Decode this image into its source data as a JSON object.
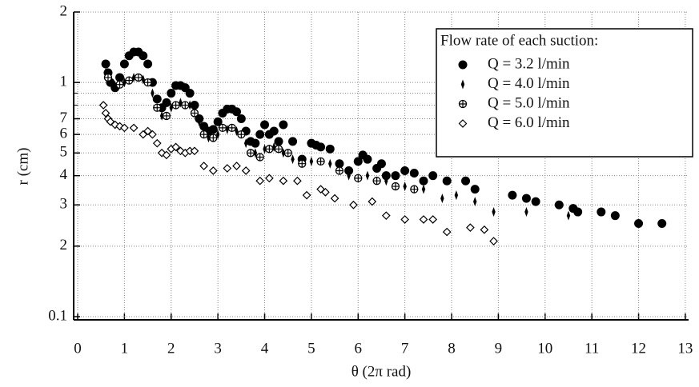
{
  "chart_data": {
    "type": "scatter",
    "xlabel": "θ (2π rad)",
    "ylabel": "r (cm)",
    "log_y": true,
    "grid": true,
    "legend_position": "upper right",
    "legend_title": "Flow rate of each suction:",
    "xlim": [
      -0.086,
      13.07
    ],
    "xticks": [
      0,
      1,
      2,
      3,
      4,
      5,
      6,
      7,
      8,
      9,
      10,
      11,
      12,
      13
    ],
    "ylim": [
      0.0969,
      2
    ],
    "yticks": [
      0.1,
      {
        "value": 0.2,
        "label": "2"
      },
      {
        "value": 0.3,
        "label": "3"
      },
      {
        "value": 0.4,
        "label": "4"
      },
      {
        "value": 0.5,
        "label": "5"
      },
      {
        "value": 0.6,
        "label": "6"
      },
      {
        "value": 0.7,
        "label": "7"
      },
      1,
      2
    ],
    "minor_yticks": [
      0.8,
      0.9
    ],
    "series": [
      {
        "name": "Q = 3.2 l/min",
        "marker": "filled-circle",
        "color": "#000000",
        "x": [
          0.6,
          0.65,
          0.7,
          0.8,
          0.9,
          1.0,
          1.1,
          1.2,
          1.3,
          1.4,
          1.5,
          1.6,
          1.7,
          1.8,
          1.9,
          2.0,
          2.1,
          2.2,
          2.3,
          2.4,
          2.5,
          2.6,
          2.7,
          2.8,
          2.9,
          3.0,
          3.1,
          3.2,
          3.3,
          3.4,
          3.5,
          3.6,
          3.7,
          3.8,
          3.9,
          4.0,
          4.1,
          4.2,
          4.3,
          4.4,
          4.6,
          4.8,
          5.0,
          5.1,
          5.2,
          5.4,
          5.6,
          5.8,
          6.0,
          6.1,
          6.2,
          6.4,
          6.5,
          6.6,
          6.8,
          7.0,
          7.2,
          7.4,
          7.6,
          7.9,
          8.3,
          8.5,
          9.3,
          9.6,
          9.8,
          10.3,
          10.6,
          10.7,
          11.2,
          11.5,
          12.0,
          12.5
        ],
        "y": [
          1.2,
          1.1,
          1.0,
          0.95,
          1.05,
          1.2,
          1.3,
          1.35,
          1.35,
          1.3,
          1.2,
          1.0,
          0.85,
          0.78,
          0.82,
          0.9,
          0.97,
          0.97,
          0.95,
          0.9,
          0.8,
          0.7,
          0.65,
          0.62,
          0.63,
          0.68,
          0.74,
          0.77,
          0.77,
          0.75,
          0.7,
          0.62,
          0.56,
          0.55,
          0.6,
          0.66,
          0.6,
          0.62,
          0.56,
          0.66,
          0.56,
          0.47,
          0.55,
          0.54,
          0.53,
          0.52,
          0.45,
          0.42,
          0.46,
          0.49,
          0.47,
          0.43,
          0.45,
          0.4,
          0.4,
          0.42,
          0.41,
          0.38,
          0.4,
          0.38,
          0.38,
          0.35,
          0.33,
          0.32,
          0.31,
          0.3,
          0.29,
          0.28,
          0.28,
          0.27,
          0.25,
          0.25
        ]
      },
      {
        "name": "Q = 4.0 l/min",
        "marker": "thin-diamond",
        "color": "#000000",
        "x": [
          0.6,
          0.7,
          0.8,
          1.0,
          1.2,
          1.4,
          1.6,
          1.8,
          2.0,
          2.2,
          2.4,
          2.6,
          2.8,
          3.0,
          3.2,
          3.4,
          3.6,
          3.8,
          4.0,
          4.2,
          4.4,
          4.6,
          5.0,
          5.4,
          5.8,
          6.2,
          6.6,
          7.0,
          7.4,
          7.8,
          8.1,
          8.5,
          8.9,
          9.6,
          10.5
        ],
        "y": [
          1.1,
          1.0,
          0.97,
          1.0,
          1.05,
          1.03,
          0.9,
          0.72,
          0.78,
          0.82,
          0.8,
          0.68,
          0.58,
          0.6,
          0.63,
          0.62,
          0.55,
          0.5,
          0.52,
          0.53,
          0.5,
          0.47,
          0.46,
          0.45,
          0.4,
          0.4,
          0.38,
          0.36,
          0.35,
          0.32,
          0.33,
          0.31,
          0.28,
          0.28,
          0.27
        ]
      },
      {
        "name": "Q = 5.0 l/min",
        "marker": "circle-plus",
        "color": "#000000",
        "x": [
          0.65,
          0.9,
          1.1,
          1.3,
          1.5,
          1.7,
          1.9,
          2.1,
          2.3,
          2.5,
          2.7,
          2.9,
          3.1,
          3.3,
          3.5,
          3.7,
          3.9,
          4.1,
          4.3,
          4.5,
          4.8,
          5.2,
          5.6,
          6.0,
          6.4,
          6.8,
          7.2
        ],
        "y": [
          1.05,
          0.98,
          1.02,
          1.05,
          1.0,
          0.78,
          0.72,
          0.8,
          0.8,
          0.74,
          0.6,
          0.58,
          0.64,
          0.64,
          0.6,
          0.5,
          0.48,
          0.52,
          0.52,
          0.5,
          0.45,
          0.46,
          0.42,
          0.39,
          0.38,
          0.36,
          0.35
        ]
      },
      {
        "name": "Q = 6.0 l/min",
        "marker": "open-diamond",
        "color": "#000000",
        "x": [
          0.55,
          0.6,
          0.65,
          0.7,
          0.8,
          0.9,
          1.0,
          1.2,
          1.4,
          1.5,
          1.6,
          1.7,
          1.8,
          1.9,
          2.0,
          2.1,
          2.2,
          2.3,
          2.4,
          2.5,
          2.7,
          2.9,
          3.2,
          3.4,
          3.6,
          3.9,
          4.1,
          4.4,
          4.7,
          4.9,
          5.2,
          5.3,
          5.5,
          5.9,
          6.3,
          6.6,
          7.0,
          7.4,
          7.6,
          7.9,
          8.4,
          8.7,
          8.9
        ],
        "y": [
          0.8,
          0.74,
          0.7,
          0.68,
          0.66,
          0.65,
          0.64,
          0.64,
          0.6,
          0.62,
          0.6,
          0.55,
          0.5,
          0.49,
          0.52,
          0.53,
          0.51,
          0.5,
          0.51,
          0.51,
          0.44,
          0.42,
          0.43,
          0.44,
          0.42,
          0.38,
          0.39,
          0.38,
          0.38,
          0.33,
          0.35,
          0.34,
          0.32,
          0.3,
          0.31,
          0.27,
          0.26,
          0.26,
          0.26,
          0.23,
          0.24,
          0.235,
          0.21
        ]
      }
    ]
  }
}
